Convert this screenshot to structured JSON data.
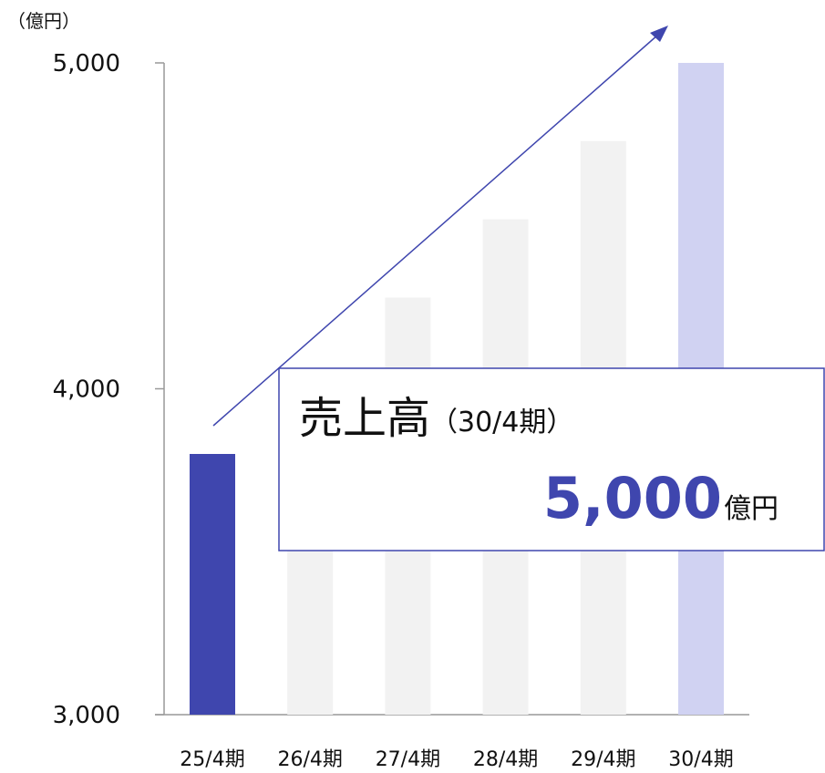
{
  "chart_data": {
    "type": "bar",
    "unit_label": "（億円）",
    "categories": [
      "25/4期",
      "26/4期",
      "27/4期",
      "28/4期",
      "29/4期",
      "30/4期"
    ],
    "values": [
      3800,
      4040,
      4280,
      4520,
      4760,
      5000
    ],
    "colors": [
      "#3f46ae",
      "#f2f2f2",
      "#f2f2f2",
      "#f2f2f2",
      "#f2f2f2",
      "#d0d2f2"
    ],
    "ylim": [
      3000,
      5000
    ],
    "yticks": [
      {
        "value": 3000,
        "label": "3,000"
      },
      {
        "value": 4000,
        "label": "4,000"
      },
      {
        "value": 5000,
        "label": "5,000"
      }
    ],
    "annotation": {
      "title": "売上高",
      "period": "（30/4期）",
      "value": "5,000",
      "unit": "億円"
    }
  }
}
